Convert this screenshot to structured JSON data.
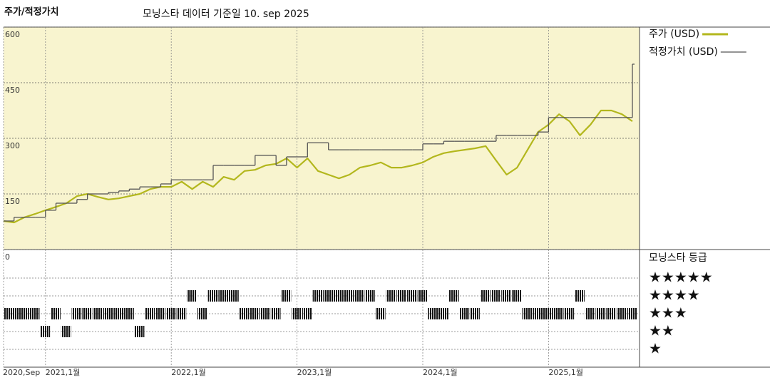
{
  "chart_data": [
    {
      "type": "line",
      "title": "주가/적정가치",
      "subtitle": "모닝스타 데이터 기준일 10. sep 2025",
      "x": [
        "2020-09",
        "2020-10",
        "2020-11",
        "2020-12",
        "2021-01",
        "2021-02",
        "2021-03",
        "2021-04",
        "2021-05",
        "2021-06",
        "2021-07",
        "2021-08",
        "2021-09",
        "2021-10",
        "2021-11",
        "2021-12",
        "2022-01",
        "2022-02",
        "2022-03",
        "2022-04",
        "2022-05",
        "2022-06",
        "2022-07",
        "2022-08",
        "2022-09",
        "2022-10",
        "2022-11",
        "2022-12",
        "2023-01",
        "2023-02",
        "2023-03",
        "2023-04",
        "2023-05",
        "2023-06",
        "2023-07",
        "2023-08",
        "2023-09",
        "2023-10",
        "2023-11",
        "2023-12",
        "2024-01",
        "2024-02",
        "2024-03",
        "2024-04",
        "2024-05",
        "2024-06",
        "2024-07",
        "2024-08",
        "2024-09",
        "2024-10",
        "2024-11",
        "2024-12",
        "2025-01",
        "2025-02",
        "2025-03",
        "2025-04",
        "2025-05",
        "2025-06",
        "2025-07",
        "2025-08",
        "2025-09"
      ],
      "xlim": [
        "2020-09",
        "2025-09"
      ],
      "xticks": [
        {
          "value": "2020-09",
          "label": "2020,Sep"
        },
        {
          "value": "2021-01",
          "label": "2021,1월"
        },
        {
          "value": "2022-01",
          "label": "2022,1월"
        },
        {
          "value": "2023-01",
          "label": "2023,1월"
        },
        {
          "value": "2024-01",
          "label": "2024,1월"
        },
        {
          "value": "2025-01",
          "label": "2025,1월"
        }
      ],
      "ylim": [
        0,
        600
      ],
      "yticks": [
        0,
        150,
        300,
        450,
        600
      ],
      "grid": true,
      "background": "#f8f4cf",
      "series": [
        {
          "name": "주가 (USD)",
          "color": "#b3b71d",
          "style": "line",
          "values": [
            77,
            73,
            87,
            96,
            106,
            115,
            125,
            144,
            150,
            142,
            135,
            138,
            144,
            150,
            163,
            169,
            169,
            183,
            163,
            183,
            169,
            196,
            188,
            212,
            215,
            227,
            231,
            246,
            221,
            246,
            212,
            202,
            192,
            202,
            221,
            227,
            235,
            221,
            221,
            227,
            235,
            250,
            260,
            265,
            269,
            273,
            279,
            240,
            202,
            221,
            269,
            317,
            337,
            365,
            346,
            308,
            337,
            375,
            375,
            365,
            346
          ]
        },
        {
          "name": "적정가치 (USD)",
          "color": "#555555",
          "style": "step",
          "values": [
            77,
            87,
            87,
            87,
            106,
            125,
            125,
            135,
            150,
            150,
            154,
            158,
            163,
            169,
            169,
            177,
            188,
            188,
            188,
            188,
            227,
            227,
            227,
            227,
            254,
            254,
            227,
            250,
            250,
            288,
            288,
            269,
            269,
            269,
            269,
            269,
            269,
            269,
            269,
            269,
            285,
            285,
            292,
            292,
            292,
            292,
            292,
            308,
            308,
            308,
            308,
            317,
            356,
            356,
            356,
            356,
            356,
            356,
            356,
            356,
            500
          ]
        }
      ]
    },
    {
      "type": "rating",
      "title": "모닝스타 등급",
      "x": [
        "2020-09",
        "2020-10",
        "2020-11",
        "2020-12",
        "2021-01",
        "2021-02",
        "2021-03",
        "2021-04",
        "2021-05",
        "2021-06",
        "2021-07",
        "2021-08",
        "2021-09",
        "2021-10",
        "2021-11",
        "2021-12",
        "2022-01",
        "2022-02",
        "2022-03",
        "2022-04",
        "2022-05",
        "2022-06",
        "2022-07",
        "2022-08",
        "2022-09",
        "2022-10",
        "2022-11",
        "2022-12",
        "2023-01",
        "2023-02",
        "2023-03",
        "2023-04",
        "2023-05",
        "2023-06",
        "2023-07",
        "2023-08",
        "2023-09",
        "2023-10",
        "2023-11",
        "2023-12",
        "2024-01",
        "2024-02",
        "2024-03",
        "2024-04",
        "2024-05",
        "2024-06",
        "2024-07",
        "2024-08",
        "2024-09",
        "2024-10",
        "2024-11",
        "2024-12",
        "2025-01",
        "2025-02",
        "2025-03",
        "2025-04",
        "2025-05",
        "2025-06",
        "2025-07",
        "2025-08",
        "2025-09"
      ],
      "ylim": [
        0,
        6.6
      ],
      "yticks": [
        {
          "value": 5,
          "label": "★★★★★"
        },
        {
          "value": 4,
          "label": "★★★★"
        },
        {
          "value": 3,
          "label": "★★★"
        },
        {
          "value": 2,
          "label": "★★"
        },
        {
          "value": 1,
          "label": "★"
        }
      ],
      "values": [
        3,
        3,
        3,
        3,
        2,
        3,
        2,
        3,
        3,
        3,
        3,
        3,
        3,
        2,
        3,
        3,
        3,
        3,
        4,
        3,
        4,
        4,
        4,
        3,
        3,
        3,
        3,
        4,
        3,
        3,
        4,
        4,
        4,
        4,
        4,
        4,
        3,
        4,
        4,
        4,
        4,
        3,
        3,
        4,
        3,
        3,
        4,
        4,
        4,
        4,
        3,
        3,
        3,
        3,
        3,
        4,
        3,
        3,
        3,
        3,
        3
      ]
    }
  ]
}
